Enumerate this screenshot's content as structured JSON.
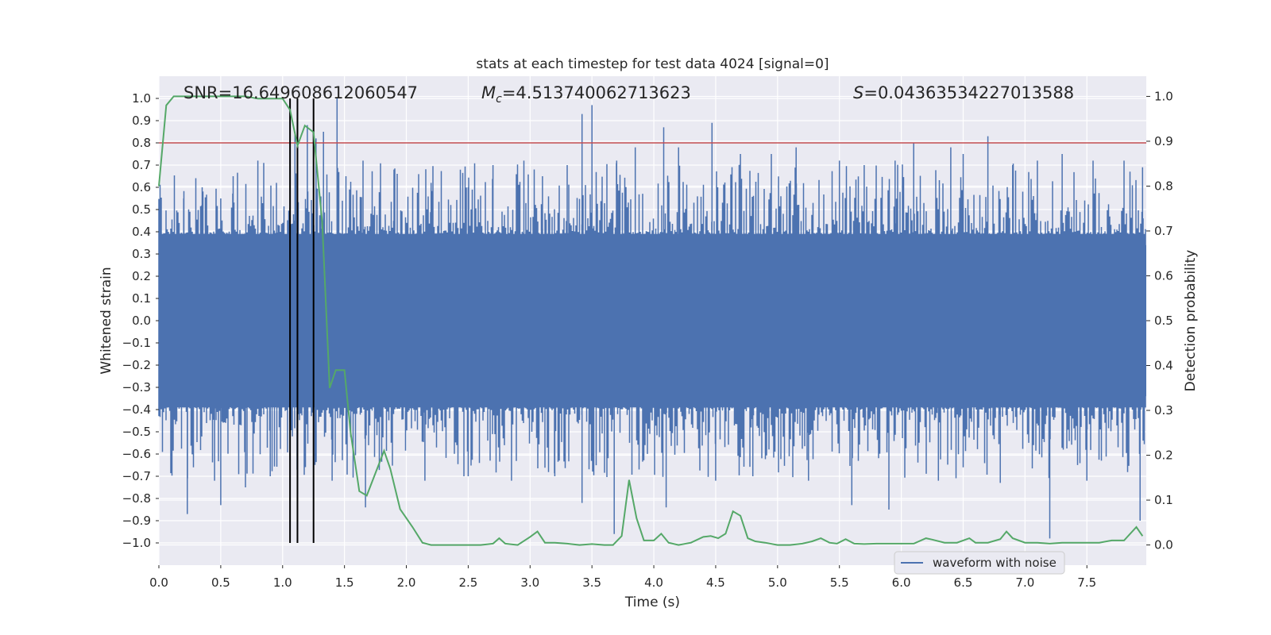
{
  "chart_data": {
    "type": "line",
    "title": "stats at each timestep for test data 4024 [signal=0]",
    "xlabel": "Time (s)",
    "ylabel": "Whitened strain",
    "y2label": "Detection probability",
    "xlim": [
      0.0,
      7.98
    ],
    "ylim": [
      -1.1,
      1.1
    ],
    "y2lim": [
      -0.045,
      1.045
    ],
    "xticks": [
      0.0,
      0.5,
      1.0,
      1.5,
      2.0,
      2.5,
      3.0,
      3.5,
      4.0,
      4.5,
      5.0,
      5.5,
      6.0,
      6.5,
      7.0,
      7.5
    ],
    "xtick_labels": [
      "0.0",
      "0.5",
      "1.0",
      "1.5",
      "2.0",
      "2.5",
      "3.0",
      "3.5",
      "4.0",
      "4.5",
      "5.0",
      "5.5",
      "6.0",
      "6.5",
      "7.0",
      "7.5"
    ],
    "yticks": [
      1.0,
      0.9,
      0.8,
      0.7,
      0.6,
      0.5,
      0.4,
      0.3,
      0.2,
      0.1,
      0.0,
      -0.1,
      -0.2,
      -0.3,
      -0.4,
      -0.5,
      -0.6,
      -0.7,
      -0.8,
      -0.9,
      -1.0
    ],
    "ytick_labels": [
      "1.0",
      "0.9",
      "0.8",
      "0.7",
      "0.6",
      "0.5",
      "0.4",
      "0.3",
      "0.2",
      "0.1",
      "0.0",
      "−0.1",
      "−0.2",
      "−0.3",
      "−0.4",
      "−0.5",
      "−0.6",
      "−0.7",
      "−0.8",
      "−0.9",
      "−1.0"
    ],
    "y2ticks": [
      1.0,
      0.9,
      0.8,
      0.7,
      0.6,
      0.5,
      0.4,
      0.3,
      0.2,
      0.1,
      0.0
    ],
    "y2tick_labels": [
      "1.0",
      "0.9",
      "0.8",
      "0.7",
      "0.6",
      "0.5",
      "0.4",
      "0.3",
      "0.2",
      "0.1",
      "0.0"
    ],
    "annotations": {
      "snr": "SNR=16.649608612060547",
      "mc_symbol": "M",
      "mc_sub": "c",
      "mc_value": "=4.513740062713623",
      "s_symbol": "S",
      "s_value": "=0.04363534227013588"
    },
    "legend": {
      "label": "waveform with noise",
      "location": "lower-right"
    },
    "threshold": {
      "value": 0.8,
      "axis": "left",
      "color": "#c44e52"
    },
    "vertical_lines": [
      1.06,
      1.12,
      1.25
    ],
    "waveform": {
      "name": "waveform with noise",
      "color": "#4c72b0",
      "band_upper": 0.39,
      "band_lower": -0.39,
      "peaks_pos": [
        [
          0.2,
          0.55
        ],
        [
          0.35,
          0.6
        ],
        [
          0.5,
          0.55
        ],
        [
          0.6,
          0.65
        ],
        [
          0.8,
          0.72
        ],
        [
          0.95,
          0.62
        ],
        [
          1.1,
          0.85
        ],
        [
          1.2,
          0.88
        ],
        [
          1.27,
          0.82
        ],
        [
          1.33,
          0.85
        ],
        [
          1.44,
          1.0
        ],
        [
          1.65,
          0.72
        ],
        [
          1.9,
          0.68
        ],
        [
          2.2,
          0.62
        ],
        [
          2.5,
          0.6
        ],
        [
          2.7,
          0.7
        ],
        [
          2.95,
          0.72
        ],
        [
          3.1,
          0.65
        ],
        [
          3.3,
          0.7
        ],
        [
          3.42,
          0.93
        ],
        [
          3.5,
          0.97
        ],
        [
          3.7,
          0.72
        ],
        [
          3.85,
          0.78
        ],
        [
          4.08,
          0.87
        ],
        [
          4.2,
          0.78
        ],
        [
          4.47,
          0.89
        ],
        [
          4.7,
          0.75
        ],
        [
          4.95,
          0.75
        ],
        [
          5.15,
          0.78
        ],
        [
          5.5,
          0.72
        ],
        [
          5.7,
          0.7
        ],
        [
          5.95,
          0.72
        ],
        [
          6.1,
          0.8
        ],
        [
          6.4,
          0.78
        ],
        [
          6.5,
          0.75
        ],
        [
          6.7,
          0.83
        ],
        [
          6.9,
          0.7
        ],
        [
          7.1,
          0.72
        ],
        [
          7.3,
          0.75
        ],
        [
          7.55,
          0.72
        ],
        [
          7.8,
          0.72
        ],
        [
          7.95,
          0.69
        ]
      ],
      "peaks_neg": [
        [
          0.23,
          -0.87
        ],
        [
          0.45,
          -0.72
        ],
        [
          0.5,
          -0.83
        ],
        [
          0.7,
          -0.75
        ],
        [
          0.9,
          -0.7
        ],
        [
          1.12,
          -0.78
        ],
        [
          1.4,
          -0.72
        ],
        [
          1.67,
          -0.84
        ],
        [
          2.15,
          -0.72
        ],
        [
          2.5,
          -0.7
        ],
        [
          2.85,
          -0.72
        ],
        [
          3.2,
          -0.7
        ],
        [
          3.42,
          -0.82
        ],
        [
          3.68,
          -0.96
        ],
        [
          4.1,
          -0.84
        ],
        [
          4.5,
          -0.72
        ],
        [
          4.8,
          -0.7
        ],
        [
          5.25,
          -0.72
        ],
        [
          5.6,
          -0.83
        ],
        [
          5.9,
          -0.85
        ],
        [
          6.3,
          -0.72
        ],
        [
          6.8,
          -0.73
        ],
        [
          7.2,
          -0.98
        ],
        [
          7.5,
          -0.72
        ],
        [
          7.93,
          -0.9
        ]
      ]
    },
    "probability": {
      "name": "detection probability",
      "color": "#55a868",
      "axis": "right",
      "x": [
        0.0,
        0.06,
        0.12,
        0.2,
        0.3,
        0.5,
        0.7,
        0.8,
        0.9,
        1.0,
        1.06,
        1.12,
        1.18,
        1.25,
        1.32,
        1.38,
        1.43,
        1.5,
        1.55,
        1.62,
        1.68,
        1.75,
        1.82,
        1.87,
        1.95,
        2.05,
        2.13,
        2.2,
        2.4,
        2.6,
        2.7,
        2.75,
        2.8,
        2.9,
        3.0,
        3.06,
        3.12,
        3.2,
        3.3,
        3.4,
        3.5,
        3.6,
        3.67,
        3.74,
        3.8,
        3.86,
        3.92,
        4.0,
        4.06,
        4.12,
        4.2,
        4.3,
        4.4,
        4.46,
        4.52,
        4.58,
        4.64,
        4.7,
        4.76,
        4.82,
        4.9,
        5.0,
        5.1,
        5.2,
        5.28,
        5.35,
        5.42,
        5.48,
        5.55,
        5.62,
        5.7,
        5.8,
        5.9,
        6.0,
        6.1,
        6.2,
        6.25,
        6.35,
        6.45,
        6.55,
        6.6,
        6.7,
        6.8,
        6.85,
        6.9,
        7.0,
        7.1,
        7.2,
        7.3,
        7.4,
        7.5,
        7.6,
        7.7,
        7.8,
        7.9,
        7.95
      ],
      "y": [
        0.8,
        0.98,
        1.0,
        1.0,
        1.0,
        1.0,
        1.0,
        0.995,
        0.995,
        0.995,
        0.97,
        0.89,
        0.935,
        0.92,
        0.72,
        0.35,
        0.39,
        0.39,
        0.25,
        0.12,
        0.11,
        0.16,
        0.21,
        0.17,
        0.08,
        0.04,
        0.005,
        0.0,
        0.0,
        0.0,
        0.003,
        0.015,
        0.003,
        0.0,
        0.018,
        0.03,
        0.005,
        0.005,
        0.003,
        0.0,
        0.002,
        0.0,
        0.0,
        0.02,
        0.145,
        0.06,
        0.01,
        0.01,
        0.025,
        0.005,
        0.0,
        0.005,
        0.018,
        0.02,
        0.015,
        0.025,
        0.075,
        0.065,
        0.015,
        0.008,
        0.005,
        0.0,
        0.0,
        0.003,
        0.008,
        0.015,
        0.005,
        0.003,
        0.013,
        0.003,
        0.002,
        0.003,
        0.003,
        0.003,
        0.003,
        0.015,
        0.012,
        0.005,
        0.005,
        0.015,
        0.005,
        0.005,
        0.013,
        0.03,
        0.015,
        0.005,
        0.005,
        0.003,
        0.005,
        0.005,
        0.005,
        0.005,
        0.01,
        0.01,
        0.04,
        0.02
      ]
    },
    "grid": true
  }
}
